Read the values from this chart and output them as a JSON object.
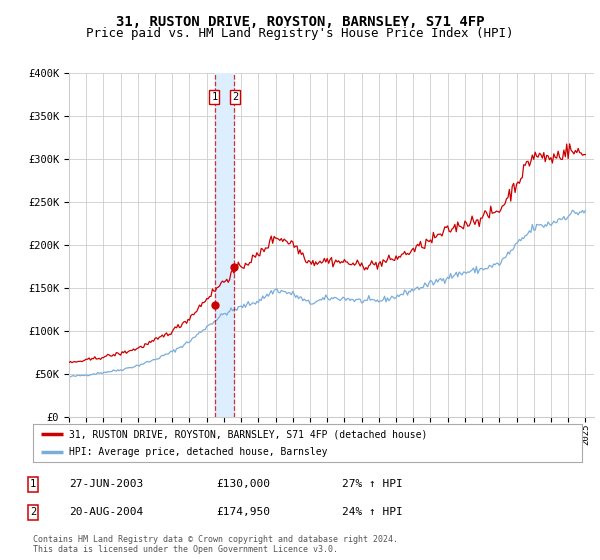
{
  "title": "31, RUSTON DRIVE, ROYSTON, BARNSLEY, S71 4FP",
  "subtitle": "Price paid vs. HM Land Registry's House Price Index (HPI)",
  "ylim": [
    0,
    400000
  ],
  "yticks": [
    0,
    50000,
    100000,
    150000,
    200000,
    250000,
    300000,
    350000,
    400000
  ],
  "ytick_labels": [
    "£0",
    "£50K",
    "£100K",
    "£150K",
    "£200K",
    "£250K",
    "£300K",
    "£350K",
    "£400K"
  ],
  "xlim_start": 1995.0,
  "xlim_end": 2025.5,
  "xticks": [
    1995,
    1996,
    1997,
    1998,
    1999,
    2000,
    2001,
    2002,
    2003,
    2004,
    2005,
    2006,
    2007,
    2008,
    2009,
    2010,
    2011,
    2012,
    2013,
    2014,
    2015,
    2016,
    2017,
    2018,
    2019,
    2020,
    2021,
    2022,
    2023,
    2024,
    2025
  ],
  "red_color": "#cc0000",
  "blue_color": "#7aaddb",
  "highlight_color": "#ddeeff",
  "grid_color": "#cccccc",
  "background_color": "#ffffff",
  "title_fontsize": 10,
  "subtitle_fontsize": 9,
  "legend_label_red": "31, RUSTON DRIVE, ROYSTON, BARNSLEY, S71 4FP (detached house)",
  "legend_label_blue": "HPI: Average price, detached house, Barnsley",
  "transaction1_date": "27-JUN-2003",
  "transaction1_price": 130000,
  "transaction1_pct": "27%",
  "transaction1_dir": "↑",
  "transaction2_date": "20-AUG-2004",
  "transaction2_price": 174950,
  "transaction2_pct": "24%",
  "transaction2_dir": "↑",
  "footnote": "Contains HM Land Registry data © Crown copyright and database right 2024.\nThis data is licensed under the Open Government Licence v3.0.",
  "transaction1_x": 2003.5,
  "transaction2_x": 2004.6
}
